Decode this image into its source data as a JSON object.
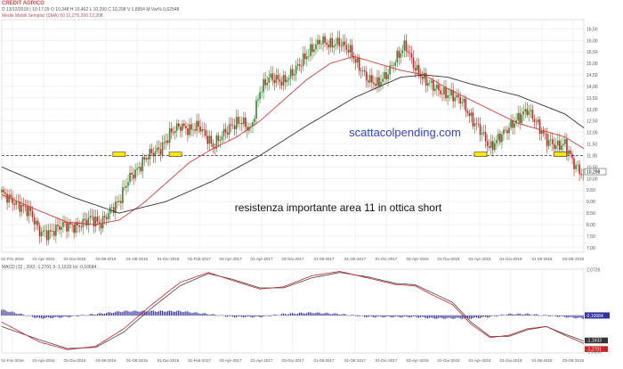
{
  "header": {
    "symbol": "CREDIT AGRICO",
    "line1": "D 13/12/2018 | 10:17:29  O 10,348  H 10,462  L 10,290  C 10,298  V 1,8954 M  Var% 0,62548",
    "line2": "Medie Mobili Semplici (SMA)   50   11,276   200   12,208"
  },
  "macd_header": "MACD   (12 , 200)   -1,2701   9   -1,1633   Ist   -0,10684",
  "watermark": "scattacolpending.com",
  "annotation": "resistenza importante area 11 in ottica short",
  "colors": {
    "background": "#ffffff",
    "grid": "#e6e6e6",
    "candle_up": "#2e8b2e",
    "candle_down": "#cc2222",
    "sma_short": "#d63a3a",
    "sma_long": "#333333",
    "resistance": "#333333",
    "highlight": "#ffe800",
    "macd_line": "#cc2222",
    "signal_line": "#444444",
    "histogram": "#3030a0",
    "watermark": "#3344cc",
    "axis_text": "#555555"
  },
  "chart_data": [
    {
      "type": "candlestick",
      "title": "CREDIT AGRICO",
      "x_labels": [
        "01-Fnv-2016",
        "01-Apr-2016",
        "03-Giu-2016",
        "03-08-2016",
        "01-Ott-2016",
        "01-Dic-2016",
        "01-Feb-2017",
        "03-Apr-2017",
        "01-Apr-2017",
        "03-Giu-2017",
        "01-08-2017",
        "01-Ott-2017",
        "01-Dic-2017",
        "03-Apr-2018",
        "01-Giu-2018",
        "01-Apr-2018",
        "01-Giu-2018",
        "01-08-2018",
        "03-Ott-2018"
      ],
      "y_ticks": [
        "16,50",
        "16,00",
        "15,50",
        "15,00",
        "14,50",
        "14,00",
        "13,50",
        "13,00",
        "12,50",
        "12,00",
        "11,50",
        "11,00",
        "10,50",
        "10,00",
        "9,50",
        "9,00",
        "8,50",
        "8,00",
        "7,50",
        "7,00"
      ],
      "ylim": [
        6.8,
        16.9
      ],
      "close_path": [
        [
          0,
          9.4
        ],
        [
          3,
          8.9
        ],
        [
          6,
          8.6
        ],
        [
          8,
          7.7
        ],
        [
          10,
          7.6
        ],
        [
          13,
          8.0
        ],
        [
          16,
          7.9
        ],
        [
          19,
          8.3
        ],
        [
          21,
          8.0
        ],
        [
          23,
          8.6
        ],
        [
          25,
          9.0
        ],
        [
          27,
          10.0
        ],
        [
          29,
          10.4
        ],
        [
          31,
          11.0
        ],
        [
          34,
          11.3
        ],
        [
          36,
          12.0
        ],
        [
          38,
          12.3
        ],
        [
          40,
          12.1
        ],
        [
          42,
          12.3
        ],
        [
          45,
          11.4
        ],
        [
          47,
          11.9
        ],
        [
          49,
          12.3
        ],
        [
          51,
          12.5
        ],
        [
          53,
          12.1
        ],
        [
          55,
          13.8
        ],
        [
          57,
          14.4
        ],
        [
          60,
          14.2
        ],
        [
          62,
          14.6
        ],
        [
          64,
          15.1
        ],
        [
          66,
          15.6
        ],
        [
          68,
          16.0
        ],
        [
          70,
          15.8
        ],
        [
          72,
          15.9
        ],
        [
          74,
          15.6
        ],
        [
          76,
          14.9
        ],
        [
          78,
          14.3
        ],
        [
          80,
          14.1
        ],
        [
          82,
          14.5
        ],
        [
          84,
          15.2
        ],
        [
          86,
          15.8
        ],
        [
          88,
          14.8
        ],
        [
          90,
          14.3
        ],
        [
          92,
          14.0
        ],
        [
          94,
          13.7
        ],
        [
          96,
          13.6
        ],
        [
          98,
          13.4
        ],
        [
          100,
          12.6
        ],
        [
          102,
          12.1
        ],
        [
          104,
          11.3
        ],
        [
          106,
          11.8
        ],
        [
          108,
          12.2
        ],
        [
          110,
          12.6
        ],
        [
          112,
          13.0
        ],
        [
          114,
          12.4
        ],
        [
          116,
          11.7
        ],
        [
          118,
          11.4
        ],
        [
          120,
          11.5
        ],
        [
          122,
          10.6
        ],
        [
          124,
          10.1
        ]
      ],
      "series": [
        {
          "name": "SMA 50",
          "value_last": 11.276,
          "path": [
            [
              0,
              9.3
            ],
            [
              8,
              8.6
            ],
            [
              14,
              8.1
            ],
            [
              20,
              8.0
            ],
            [
              25,
              8.2
            ],
            [
              30,
              8.9
            ],
            [
              35,
              9.8
            ],
            [
              40,
              10.7
            ],
            [
              45,
              11.3
            ],
            [
              50,
              11.8
            ],
            [
              55,
              12.5
            ],
            [
              60,
              13.4
            ],
            [
              65,
              14.3
            ],
            [
              70,
              15.0
            ],
            [
              75,
              15.3
            ],
            [
              80,
              15.0
            ],
            [
              85,
              14.7
            ],
            [
              90,
              14.5
            ],
            [
              95,
              13.9
            ],
            [
              100,
              13.4
            ],
            [
              105,
              12.9
            ],
            [
              110,
              12.4
            ],
            [
              115,
              12.1
            ],
            [
              120,
              11.8
            ],
            [
              124,
              11.3
            ]
          ]
        },
        {
          "name": "SMA 200",
          "value_last": 12.208,
          "path": [
            [
              0,
              10.5
            ],
            [
              15,
              9.2
            ],
            [
              25,
              8.5
            ],
            [
              35,
              9.0
            ],
            [
              45,
              9.9
            ],
            [
              55,
              11.0
            ],
            [
              65,
              12.3
            ],
            [
              75,
              13.5
            ],
            [
              85,
              14.4
            ],
            [
              90,
              14.5
            ],
            [
              95,
              14.4
            ],
            [
              100,
              14.1
            ],
            [
              110,
              13.6
            ],
            [
              120,
              12.8
            ],
            [
              124,
              12.2
            ]
          ]
        }
      ],
      "resistance_level": 11.0,
      "highlights": [
        [
          25,
          11.05
        ],
        [
          37,
          11.05
        ],
        [
          102,
          11.05
        ],
        [
          119,
          11.05
        ]
      ],
      "last_price": "10,298"
    },
    {
      "type": "line",
      "title": "MACD",
      "y_ticks": [
        "2,0726",
        "-1,6356"
      ],
      "ylim": [
        -1.7,
        2.1
      ],
      "x_labels": [
        "01-Fnv-2016",
        "01-Apr-2016",
        "03-Giu-2016",
        "03-08-2016",
        "01-Ott-2016",
        "01-Dic-2016",
        "01-Feb-2017",
        "03-Apr-2017",
        "01-Apr-2017",
        "03-Giu-2017",
        "01-08-2017",
        "01-Ott-2017",
        "01-Dic-2017",
        "03-Apr-2018",
        "01-Giu-2018",
        "01-Apr-2018",
        "01-Giu-2018",
        "01-08-2018",
        "03-Ott-2018"
      ],
      "series": [
        {
          "name": "MACD",
          "value_last": -1.2701,
          "path": [
            [
              0,
              -0.3
            ],
            [
              8,
              -1.2
            ],
            [
              14,
              -1.55
            ],
            [
              20,
              -1.4
            ],
            [
              26,
              -0.6
            ],
            [
              32,
              0.5
            ],
            [
              38,
              1.5
            ],
            [
              44,
              1.95
            ],
            [
              49,
              1.6
            ],
            [
              55,
              1.2
            ],
            [
              60,
              1.3
            ],
            [
              66,
              1.8
            ],
            [
              72,
              2.0
            ],
            [
              78,
              1.7
            ],
            [
              84,
              1.4
            ],
            [
              88,
              1.35
            ],
            [
              92,
              0.9
            ],
            [
              96,
              0.5
            ],
            [
              100,
              -0.4
            ],
            [
              104,
              -1.0
            ],
            [
              108,
              -0.9
            ],
            [
              112,
              -0.6
            ],
            [
              116,
              -0.5
            ],
            [
              120,
              -0.9
            ],
            [
              124,
              -1.27
            ]
          ]
        },
        {
          "name": "Signal",
          "value_last": -1.1633,
          "path": [
            [
              0,
              -0.5
            ],
            [
              8,
              -1.1
            ],
            [
              14,
              -1.5
            ],
            [
              20,
              -1.45
            ],
            [
              26,
              -0.75
            ],
            [
              32,
              0.35
            ],
            [
              38,
              1.35
            ],
            [
              44,
              1.9
            ],
            [
              49,
              1.65
            ],
            [
              55,
              1.25
            ],
            [
              60,
              1.25
            ],
            [
              66,
              1.7
            ],
            [
              72,
              1.95
            ],
            [
              78,
              1.75
            ],
            [
              84,
              1.45
            ],
            [
              88,
              1.4
            ],
            [
              92,
              1.0
            ],
            [
              96,
              0.6
            ],
            [
              100,
              -0.3
            ],
            [
              104,
              -0.95
            ],
            [
              108,
              -0.95
            ],
            [
              112,
              -0.65
            ],
            [
              116,
              -0.5
            ],
            [
              120,
              -0.85
            ],
            [
              124,
              -1.16
            ]
          ]
        }
      ],
      "histogram_value": -0.10684,
      "last_values": [
        "-1,1633",
        "-1,2701"
      ]
    }
  ]
}
